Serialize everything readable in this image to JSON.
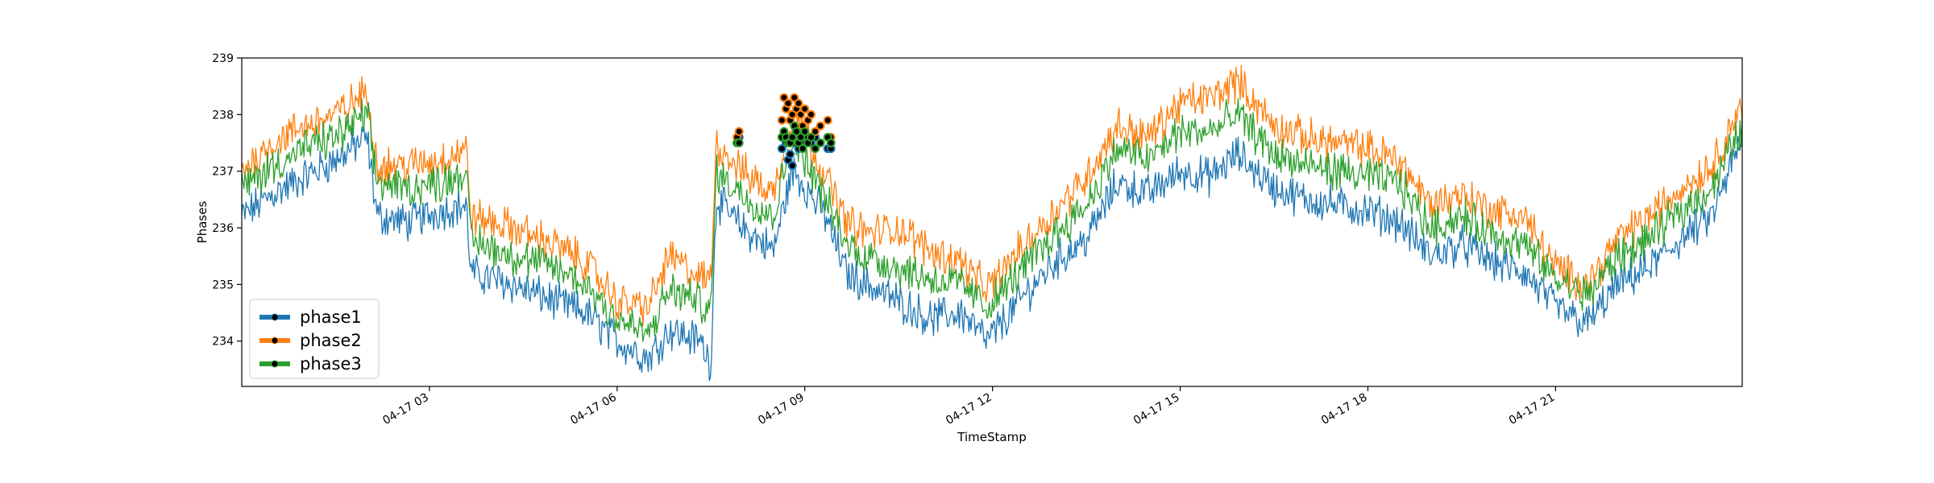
{
  "chart_data": {
    "type": "line",
    "title": "",
    "xlabel": "TimeStamp",
    "ylabel": "Phases",
    "xlim": [
      "2021-04-17 00:00",
      "2021-04-17 23:59"
    ],
    "ylim": [
      233.2,
      239
    ],
    "yticks": [
      234,
      235,
      236,
      237,
      238,
      239
    ],
    "xticks": [
      {
        "time": "2021-04-17 03:00",
        "label": "04-17 03"
      },
      {
        "time": "2021-04-17 06:00",
        "label": "04-17 06"
      },
      {
        "time": "2021-04-17 09:00",
        "label": "04-17 09"
      },
      {
        "time": "2021-04-17 12:00",
        "label": "04-17 12"
      },
      {
        "time": "2021-04-17 15:00",
        "label": "04-17 15"
      },
      {
        "time": "2021-04-17 18:00",
        "label": "04-17 18"
      },
      {
        "time": "2021-04-17 21:00",
        "label": "04-17 21"
      }
    ],
    "grid": false,
    "legend_position": "lower-left",
    "x": [
      "2021-04-17 00:00",
      "2021-04-17 00:30",
      "2021-04-17 01:00",
      "2021-04-17 01:30",
      "2021-04-17 02:00",
      "2021-04-17 02:10",
      "2021-04-17 02:40",
      "2021-04-17 03:10",
      "2021-04-17 03:35",
      "2021-04-17 03:40",
      "2021-04-17 04:20",
      "2021-04-17 05:00",
      "2021-04-17 05:30",
      "2021-04-17 06:00",
      "2021-04-17 06:30",
      "2021-04-17 06:50",
      "2021-04-17 07:20",
      "2021-04-17 07:30",
      "2021-04-17 07:35",
      "2021-04-17 08:00",
      "2021-04-17 08:30",
      "2021-04-17 08:45",
      "2021-04-17 08:50",
      "2021-04-17 09:20",
      "2021-04-17 09:40",
      "2021-04-17 10:00",
      "2021-04-17 10:30",
      "2021-04-17 11:00",
      "2021-04-17 11:30",
      "2021-04-17 11:55",
      "2021-04-17 12:30",
      "2021-04-17 13:00",
      "2021-04-17 13:30",
      "2021-04-17 14:00",
      "2021-04-17 14:30",
      "2021-04-17 15:00",
      "2021-04-17 15:30",
      "2021-04-17 15:55",
      "2021-04-17 16:30",
      "2021-04-17 17:00",
      "2021-04-17 17:30",
      "2021-04-17 18:00",
      "2021-04-17 18:30",
      "2021-04-17 19:00",
      "2021-04-17 19:30",
      "2021-04-17 20:00",
      "2021-04-17 20:30",
      "2021-04-17 21:00",
      "2021-04-17 21:30",
      "2021-04-17 22:00",
      "2021-04-17 22:30",
      "2021-04-17 23:00",
      "2021-04-17 23:30",
      "2021-04-17 23:59"
    ],
    "series": [
      {
        "name": "phase1",
        "color": "#1f77b4",
        "values": [
          236.2,
          236.6,
          236.9,
          237.2,
          237.6,
          236.2,
          236.1,
          236.3,
          236.4,
          235.2,
          235.0,
          234.7,
          234.5,
          234.0,
          233.7,
          234.2,
          234.0,
          233.6,
          236.5,
          236.0,
          235.6,
          236.8,
          237.0,
          236.2,
          235.2,
          235.0,
          234.7,
          234.4,
          234.5,
          234.0,
          234.8,
          235.4,
          235.8,
          236.8,
          236.6,
          237.0,
          236.9,
          237.3,
          236.7,
          236.5,
          236.4,
          236.3,
          236.1,
          235.5,
          235.7,
          235.4,
          235.2,
          234.6,
          234.3,
          235.0,
          235.3,
          235.8,
          236.2,
          237.6
        ]
      },
      {
        "name": "phase2",
        "color": "#ff7f0e",
        "values": [
          237.0,
          237.5,
          237.8,
          238.0,
          238.4,
          237.1,
          237.1,
          237.2,
          237.4,
          236.2,
          236.0,
          235.7,
          235.4,
          234.7,
          234.6,
          235.5,
          235.1,
          235.1,
          237.5,
          237.0,
          236.6,
          237.8,
          238.1,
          236.9,
          236.1,
          235.9,
          236.0,
          235.6,
          235.4,
          234.9,
          235.7,
          236.3,
          236.9,
          237.8,
          237.6,
          238.2,
          238.3,
          238.6,
          237.8,
          237.6,
          237.5,
          237.4,
          237.2,
          236.4,
          236.6,
          236.3,
          236.2,
          235.3,
          235.0,
          235.8,
          236.2,
          236.7,
          237.1,
          238.2
        ]
      },
      {
        "name": "phase3",
        "color": "#2ca02c",
        "values": [
          236.7,
          237.1,
          237.4,
          237.6,
          238.0,
          236.8,
          236.7,
          236.8,
          237.0,
          235.8,
          235.5,
          235.3,
          235.0,
          234.4,
          234.1,
          234.9,
          234.7,
          234.5,
          237.0,
          236.6,
          236.2,
          237.4,
          237.6,
          236.5,
          235.7,
          235.5,
          235.3,
          235.1,
          235.0,
          234.6,
          235.3,
          235.9,
          236.4,
          237.4,
          237.2,
          237.7,
          237.7,
          238.0,
          237.3,
          237.1,
          237.0,
          236.9,
          236.8,
          236.0,
          236.2,
          235.9,
          235.7,
          235.1,
          234.8,
          235.5,
          235.8,
          236.3,
          236.7,
          237.8
        ]
      }
    ],
    "anomaly_markers": {
      "marker_color": "#000000",
      "x": [
        "2021-04-17 07:55",
        "2021-04-17 07:57",
        "2021-04-17 08:38",
        "2021-04-17 08:40",
        "2021-04-17 08:42",
        "2021-04-17 08:44",
        "2021-04-17 08:46",
        "2021-04-17 08:48",
        "2021-04-17 08:50",
        "2021-04-17 08:52",
        "2021-04-17 08:54",
        "2021-04-17 08:56",
        "2021-04-17 08:58",
        "2021-04-17 09:00",
        "2021-04-17 09:03",
        "2021-04-17 09:06",
        "2021-04-17 09:10",
        "2021-04-17 09:15",
        "2021-04-17 09:22",
        "2021-04-17 09:25"
      ],
      "phase1": [
        237.5,
        237.6,
        237.4,
        237.6,
        237.5,
        237.2,
        237.3,
        237.1,
        237.5,
        237.6,
        237.4,
        237.6,
        237.5,
        237.7,
        237.6,
        237.5,
        237.6,
        237.5,
        237.4,
        237.4
      ],
      "phase2": [
        237.6,
        237.7,
        237.9,
        238.3,
        238.1,
        238.2,
        237.9,
        238.0,
        238.3,
        238.1,
        238.2,
        238.0,
        237.8,
        238.1,
        237.9,
        238.0,
        237.7,
        237.8,
        237.9,
        237.6
      ],
      "phase3": [
        237.5,
        237.5,
        237.6,
        237.7,
        237.6,
        237.5,
        237.5,
        237.6,
        237.8,
        237.7,
        237.5,
        237.6,
        237.4,
        237.7,
        237.5,
        237.6,
        237.4,
        237.5,
        237.6,
        237.5
      ]
    }
  }
}
